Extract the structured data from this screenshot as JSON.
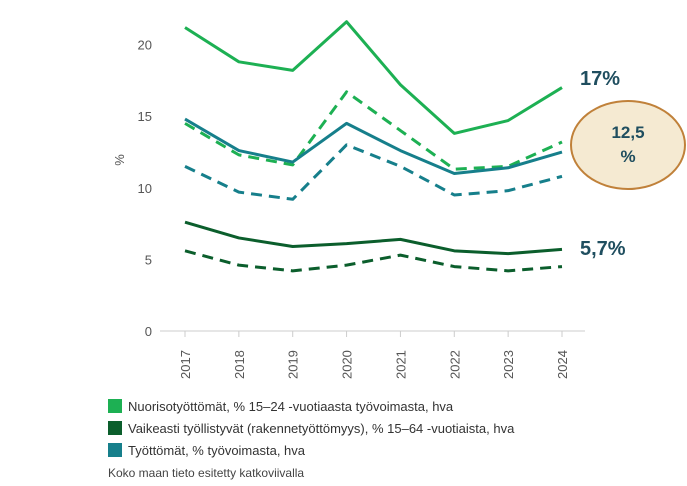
{
  "chart_data": {
    "type": "line",
    "ylabel": "%",
    "ylim": [
      0,
      22
    ],
    "yticks": [
      "0",
      "5",
      "10",
      "15",
      "20"
    ],
    "yticks_values": [
      0,
      5,
      10,
      15,
      20
    ],
    "categories": [
      "2017",
      "2018",
      "2019",
      "2020",
      "2021",
      "2022",
      "2023",
      "2024"
    ],
    "series": [
      {
        "name": "Nuorisotyöttömät, % 15–24 -vuotiaasta työvoimasta, hva",
        "color": "#1db053",
        "style": "solid",
        "values": [
          21.2,
          18.8,
          18.2,
          21.6,
          17.2,
          13.8,
          14.7,
          17.0
        ]
      },
      {
        "name": "Nuorisotyöttömät, % 15–24 -vuotiaasta työvoimasta, hva",
        "color": "#1db053",
        "style": "dashed",
        "values": [
          14.5,
          12.3,
          11.6,
          16.7,
          14.0,
          11.3,
          11.5,
          13.2
        ]
      },
      {
        "name": "Vaikeasti työllistyvät (rakennetyöttömyys), % 15–64 -vuotiaista, hva",
        "color": "#0b5e2c",
        "style": "solid",
        "values": [
          7.6,
          6.5,
          5.9,
          6.1,
          6.4,
          5.6,
          5.4,
          5.7
        ]
      },
      {
        "name": "Vaikeasti työllistyvät (rakennetyöttömyys), % 15–64 -vuotiaista, hva",
        "color": "#0b5e2c",
        "style": "dashed",
        "values": [
          5.6,
          4.6,
          4.2,
          4.6,
          5.3,
          4.5,
          4.2,
          4.5
        ]
      },
      {
        "name": "Työttömät, % työvoimasta, hva",
        "color": "#167f8b",
        "style": "solid",
        "values": [
          14.8,
          12.6,
          11.8,
          14.5,
          12.6,
          11.0,
          11.4,
          12.5
        ]
      },
      {
        "name": "Työttömät, % työvoimasta, hva",
        "color": "#167f8b",
        "style": "dashed",
        "values": [
          11.5,
          9.7,
          9.2,
          13.0,
          11.5,
          9.5,
          9.8,
          10.8
        ]
      }
    ],
    "legend": [
      {
        "label": "Nuorisotyöttömät, % 15–24 -vuotiaasta työvoimasta, hva",
        "color": "#1db053"
      },
      {
        "label": "Vaikeasti työllistyvät (rakennetyöttömyys), % 15–64 -vuotiaista, hva",
        "color": "#0b5e2c"
      },
      {
        "label": "Työttömät, % työvoimasta, hva",
        "color": "#167f8b"
      }
    ],
    "legend_position": "bottom-left",
    "grid": false,
    "annotations": {
      "youth": "17%",
      "total_line1": "12,5",
      "total_line2": "%",
      "structural": "5,7%"
    }
  },
  "note": "Koko maan tieto esitetty katkoviivalla"
}
